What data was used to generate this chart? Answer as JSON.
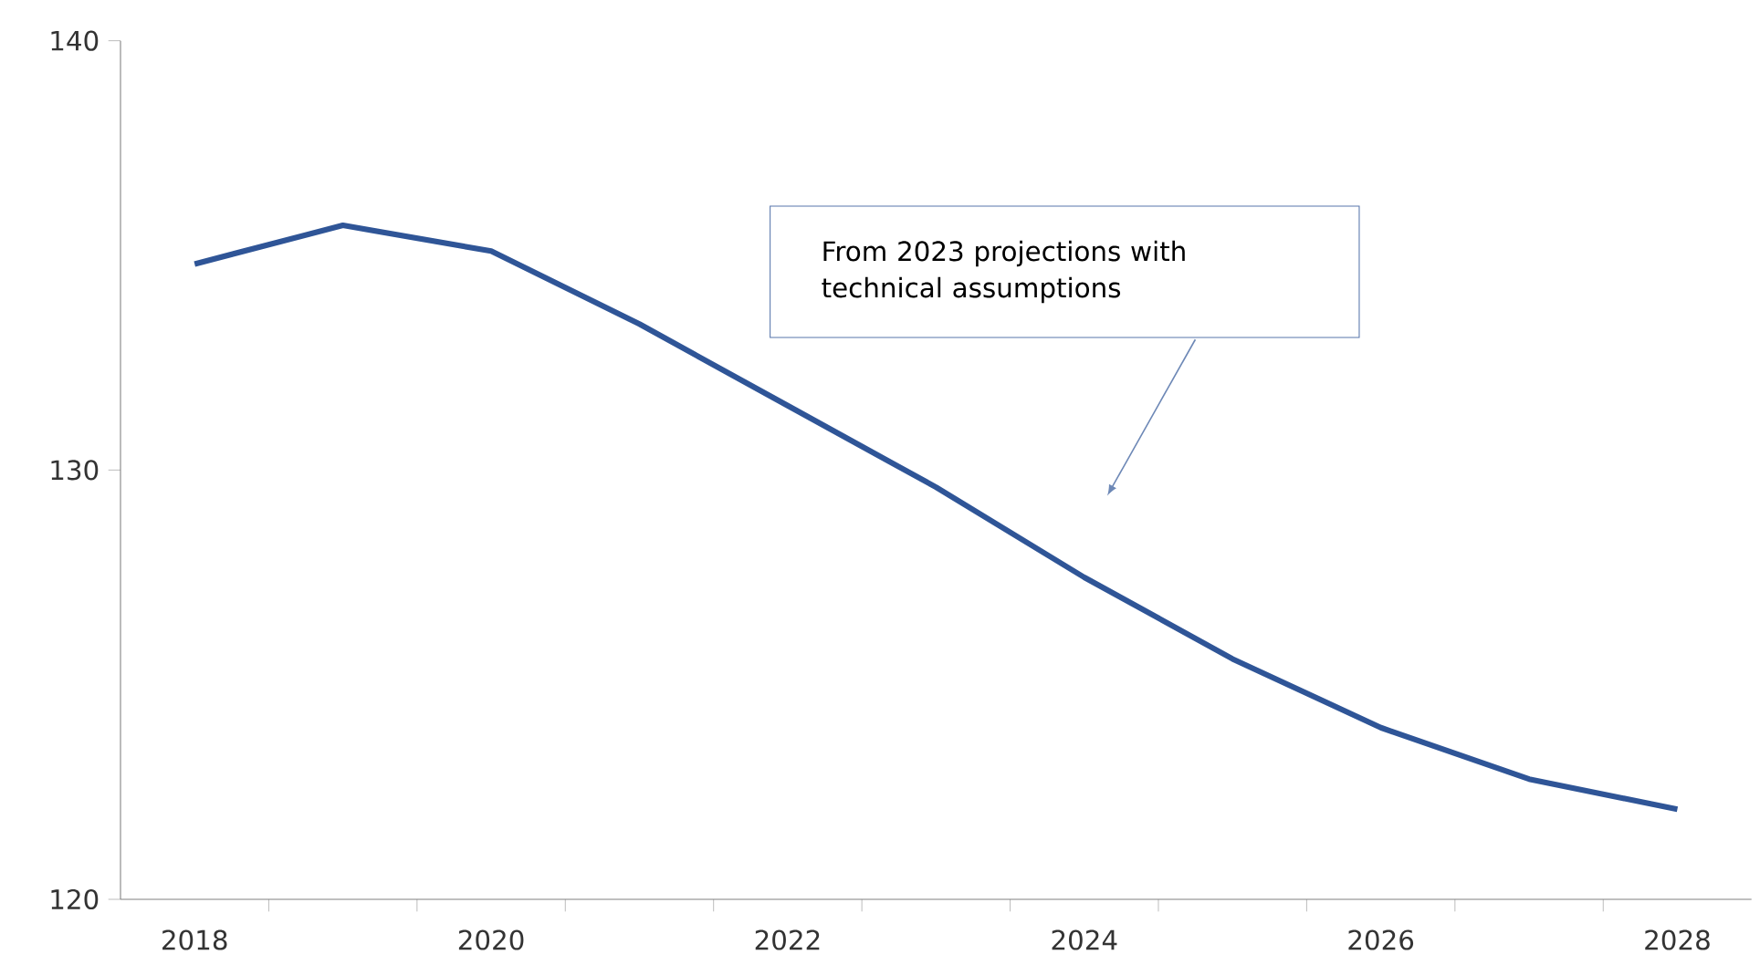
{
  "chart_data": {
    "type": "line",
    "categories": [
      "2018",
      null,
      "2020",
      null,
      "2022",
      null,
      "2024",
      null,
      "2026",
      null,
      "2028"
    ],
    "values": [
      134.8,
      135.7,
      135.1,
      133.4,
      131.5,
      129.6,
      127.5,
      125.6,
      124.0,
      122.8,
      122.1
    ],
    "color": "#2f5597",
    "ylim": [
      120,
      140
    ],
    "yticks": [
      120,
      130,
      140
    ],
    "annotations": [
      "From 2023 projections with technical assumptions"
    ]
  }
}
